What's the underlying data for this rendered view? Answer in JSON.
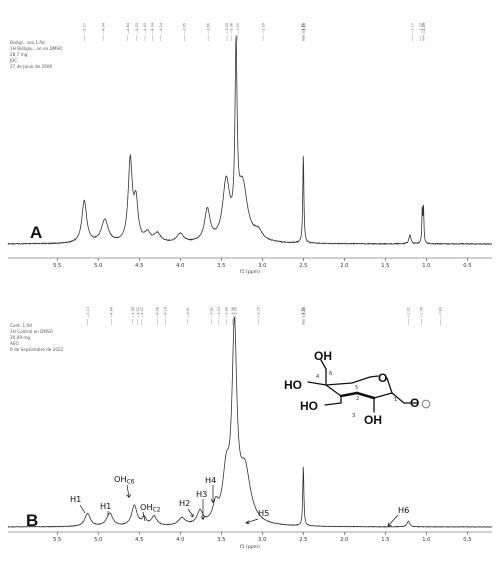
{
  "chart_data": [
    {
      "panel": "A",
      "type": "line",
      "header": [
        "Bisbgl...sno.1.fid",
        "1H Bisbglu...no en DMSO",
        "28.7 mg",
        "JUC",
        "27 de Junio de 2009"
      ],
      "xlabel": "f1 (ppm)",
      "xlim": [
        6.1,
        0.2
      ],
      "xticks": [
        "5.5",
        "5.0",
        "4.5",
        "4.0",
        "3.5",
        "3.0",
        "2.5",
        "2.0",
        "1.5",
        "1.0",
        "0.5"
      ],
      "peak_labels": [
        "5.17",
        "4.94",
        "4.64",
        "4.53",
        "4.43",
        "4.34",
        "4.24",
        "3.95",
        "3.66",
        "3.43",
        "3.38",
        "3.30",
        "2.99",
        "2.51",
        "2.50",
        "2.49",
        "1.17",
        "1.07",
        "1.04",
        "1.03"
      ],
      "peaks": [
        {
          "x": 5.17,
          "h": 0.24,
          "w": 0.035
        },
        {
          "x": 4.92,
          "h": 0.13,
          "w": 0.05
        },
        {
          "x": 4.61,
          "h": 0.46,
          "w": 0.03
        },
        {
          "x": 4.54,
          "h": 0.22,
          "w": 0.03
        },
        {
          "x": 4.4,
          "h": 0.05,
          "w": 0.04
        },
        {
          "x": 4.28,
          "h": 0.05,
          "w": 0.05
        },
        {
          "x": 4.0,
          "h": 0.05,
          "w": 0.05
        },
        {
          "x": 3.67,
          "h": 0.18,
          "w": 0.04
        },
        {
          "x": 3.44,
          "h": 0.33,
          "w": 0.05
        },
        {
          "x": 3.32,
          "h": 1.0,
          "w": 0.015
        },
        {
          "x": 3.24,
          "h": 0.32,
          "w": 0.07
        },
        {
          "x": 3.05,
          "h": 0.05,
          "w": 0.06
        },
        {
          "x": 2.5,
          "h": 0.5,
          "w": 0.008
        },
        {
          "x": 1.2,
          "h": 0.05,
          "w": 0.015
        },
        {
          "x": 1.05,
          "h": 0.2,
          "w": 0.006
        },
        {
          "x": 1.035,
          "h": 0.2,
          "w": 0.006
        }
      ]
    },
    {
      "panel": "B",
      "type": "line",
      "header": [
        "Cont..1.fid",
        "1H Control en DMSO",
        "20,09 mg",
        "AEG",
        "6 de Septiembre de 2022"
      ],
      "xlabel": "f1 (ppm)",
      "xlim": [
        6.1,
        0.2
      ],
      "xticks": [
        "5.5",
        "5.0",
        "4.5",
        "4.0",
        "3.5",
        "3.0",
        "2.5",
        "2.0",
        "1.5",
        "1.0",
        "0.5"
      ],
      "peak_labels": [
        "5.13",
        "4.84",
        "4.58",
        "4.52",
        "4.47",
        "4.28",
        "4.18",
        "3.91",
        "3.62",
        "3.53",
        "3.44",
        "3.36",
        "3.33",
        "3.05",
        "2.51",
        "2.50",
        "2.49",
        "1.22",
        "1.06",
        "0.83"
      ],
      "peaks": [
        {
          "x": 5.13,
          "h": 0.07,
          "w": 0.04
        },
        {
          "x": 4.86,
          "h": 0.07,
          "w": 0.045
        },
        {
          "x": 4.56,
          "h": 0.11,
          "w": 0.04
        },
        {
          "x": 4.44,
          "h": 0.04,
          "w": 0.03
        },
        {
          "x": 4.32,
          "h": 0.05,
          "w": 0.04
        },
        {
          "x": 3.98,
          "h": 0.04,
          "w": 0.05
        },
        {
          "x": 3.76,
          "h": 0.07,
          "w": 0.04
        },
        {
          "x": 3.57,
          "h": 0.09,
          "w": 0.04
        },
        {
          "x": 3.44,
          "h": 0.25,
          "w": 0.05
        },
        {
          "x": 3.34,
          "h": 1.0,
          "w": 0.035
        },
        {
          "x": 3.21,
          "h": 0.28,
          "w": 0.08
        },
        {
          "x": 2.5,
          "h": 0.32,
          "w": 0.008
        },
        {
          "x": 1.22,
          "h": 0.03,
          "w": 0.02
        }
      ],
      "annotations": [
        {
          "label": "H1",
          "sub": ""
        },
        {
          "label": "H1",
          "sub": ""
        },
        {
          "label": "OH",
          "sub": "C6"
        },
        {
          "label": "OH",
          "sub": "C2"
        },
        {
          "label": "H2",
          "sub": ""
        },
        {
          "label": "H3",
          "sub": ""
        },
        {
          "label": "H4",
          "sub": ""
        },
        {
          "label": "H5",
          "sub": ""
        },
        {
          "label": "H6",
          "sub": ""
        }
      ],
      "structure": {
        "atoms": [
          "OH",
          "HO",
          "HO",
          "OH",
          "O",
          "O"
        ],
        "numbers": [
          "6",
          "5",
          "4",
          "3",
          "2",
          "1"
        ]
      }
    }
  ]
}
